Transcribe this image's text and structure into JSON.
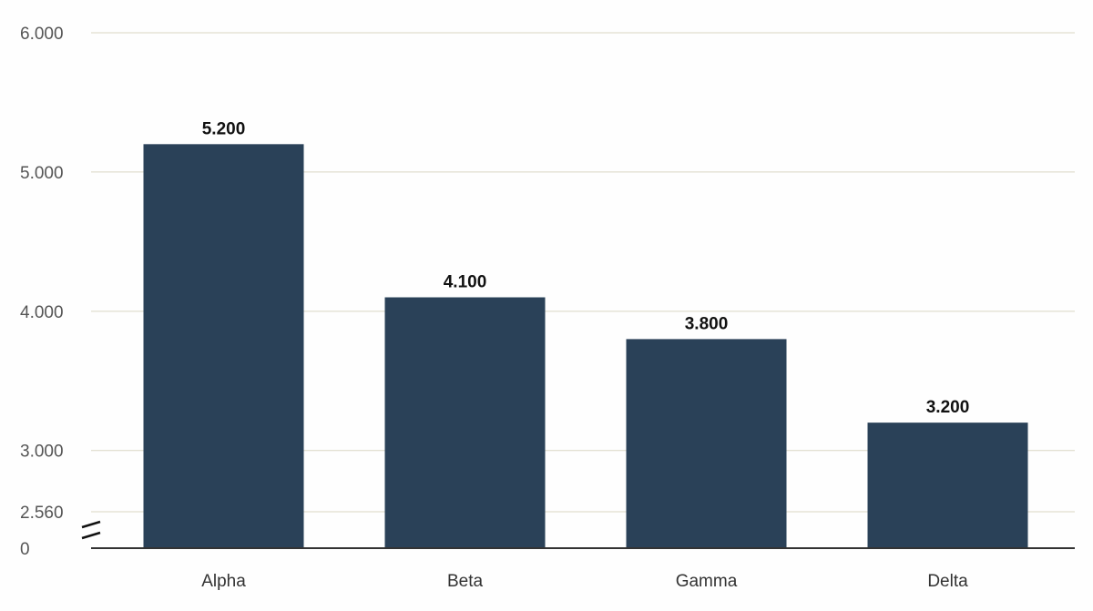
{
  "chart_data": {
    "type": "bar",
    "categories": [
      "Alpha",
      "Beta",
      "Gamma",
      "Delta"
    ],
    "values": [
      5200,
      4100,
      3800,
      3200
    ],
    "value_labels": [
      "5.200",
      "4.100",
      "3.800",
      "3.200"
    ],
    "title": "",
    "xlabel": "",
    "ylabel": "",
    "ylim": [
      0,
      6000
    ],
    "axis_break": {
      "from": 0,
      "to": 2560
    },
    "yticks": [
      {
        "value": 6000,
        "label": "6.000"
      },
      {
        "value": 5000,
        "label": "5.000"
      },
      {
        "value": 4000,
        "label": "4.000"
      },
      {
        "value": 3000,
        "label": "3.000"
      },
      {
        "value": 2560,
        "label": "2.560"
      },
      {
        "value": 0,
        "label": "0"
      }
    ],
    "grid": true,
    "legend": "none",
    "colors": {
      "bar": "#2a4158",
      "grid": "#d9d6c3",
      "axis": "#333333"
    }
  }
}
